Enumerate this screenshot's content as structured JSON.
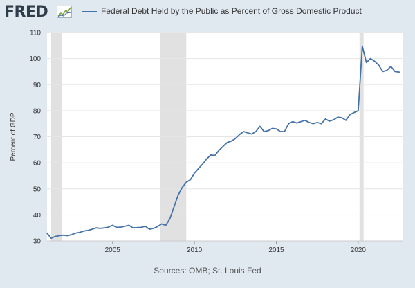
{
  "header": {
    "logo_text": "FRED",
    "logo_icon": "fred-chart-icon",
    "legend_label": "Federal Debt Held by the Public as Percent of Gross Domestic Product"
  },
  "footer": {
    "source": "Sources: OMB; St. Louis Fed"
  },
  "colors": {
    "line": "#4572a7",
    "plot_background": "#ffffff",
    "outer_background": "#e1e9f0",
    "recession_shade": "#e1e1e1",
    "gridline": "#e6e6e6"
  },
  "chart_data": {
    "type": "line",
    "title": "",
    "xlabel": "",
    "ylabel": "Percent of GDP",
    "ylim": [
      30,
      110
    ],
    "yticks": [
      30,
      40,
      50,
      60,
      70,
      80,
      90,
      100,
      110
    ],
    "xlim": [
      2001.0,
      2022.75
    ],
    "xticks": [
      2005,
      2010,
      2015,
      2020
    ],
    "grid": true,
    "legend_position": "top",
    "recessions": [
      [
        2001.25,
        2001.92
      ],
      [
        2007.92,
        2009.5
      ],
      [
        2020.08,
        2020.33
      ]
    ],
    "series": [
      {
        "name": "Federal Debt Held by the Public as Percent of Gross Domestic Product",
        "x": [
          2001.0,
          2001.25,
          2001.5,
          2001.75,
          2002.0,
          2002.25,
          2002.5,
          2002.75,
          2003.0,
          2003.25,
          2003.5,
          2003.75,
          2004.0,
          2004.25,
          2004.5,
          2004.75,
          2005.0,
          2005.25,
          2005.5,
          2005.75,
          2006.0,
          2006.25,
          2006.5,
          2006.75,
          2007.0,
          2007.25,
          2007.5,
          2007.75,
          2008.0,
          2008.25,
          2008.5,
          2008.75,
          2009.0,
          2009.25,
          2009.5,
          2009.75,
          2010.0,
          2010.25,
          2010.5,
          2010.75,
          2011.0,
          2011.25,
          2011.5,
          2011.75,
          2012.0,
          2012.25,
          2012.5,
          2012.75,
          2013.0,
          2013.25,
          2013.5,
          2013.75,
          2014.0,
          2014.25,
          2014.5,
          2014.75,
          2015.0,
          2015.25,
          2015.5,
          2015.75,
          2016.0,
          2016.25,
          2016.5,
          2016.75,
          2017.0,
          2017.25,
          2017.5,
          2017.75,
          2018.0,
          2018.25,
          2018.5,
          2018.75,
          2019.0,
          2019.25,
          2019.5,
          2019.75,
          2020.0,
          2020.25,
          2020.5,
          2020.75,
          2021.0,
          2021.25,
          2021.5,
          2021.75,
          2022.0,
          2022.25,
          2022.5
        ],
        "values": [
          33.0,
          31.0,
          31.7,
          32.0,
          32.2,
          32.0,
          32.4,
          33.0,
          33.3,
          33.8,
          34.0,
          34.5,
          35.0,
          34.8,
          35.0,
          35.3,
          36.0,
          35.2,
          35.3,
          35.6,
          36.0,
          35.0,
          35.1,
          35.2,
          35.6,
          34.5,
          34.8,
          35.5,
          36.5,
          36.0,
          38.5,
          43.0,
          47.5,
          50.5,
          52.5,
          53.5,
          56.0,
          57.8,
          59.5,
          61.5,
          63.0,
          62.8,
          64.8,
          66.3,
          67.8,
          68.3,
          69.3,
          70.8,
          72.0,
          71.5,
          71.0,
          72.0,
          74.0,
          72.0,
          72.3,
          73.2,
          73.0,
          72.0,
          72.0,
          75.0,
          75.8,
          75.3,
          75.8,
          76.3,
          75.5,
          75.0,
          75.5,
          75.0,
          76.8,
          76.0,
          76.5,
          77.5,
          77.3,
          76.3,
          78.5,
          79.3,
          80.0,
          104.8,
          98.5,
          100.0,
          99.0,
          97.5,
          95.0,
          95.5,
          97.0,
          95.0,
          94.8
        ]
      }
    ]
  }
}
